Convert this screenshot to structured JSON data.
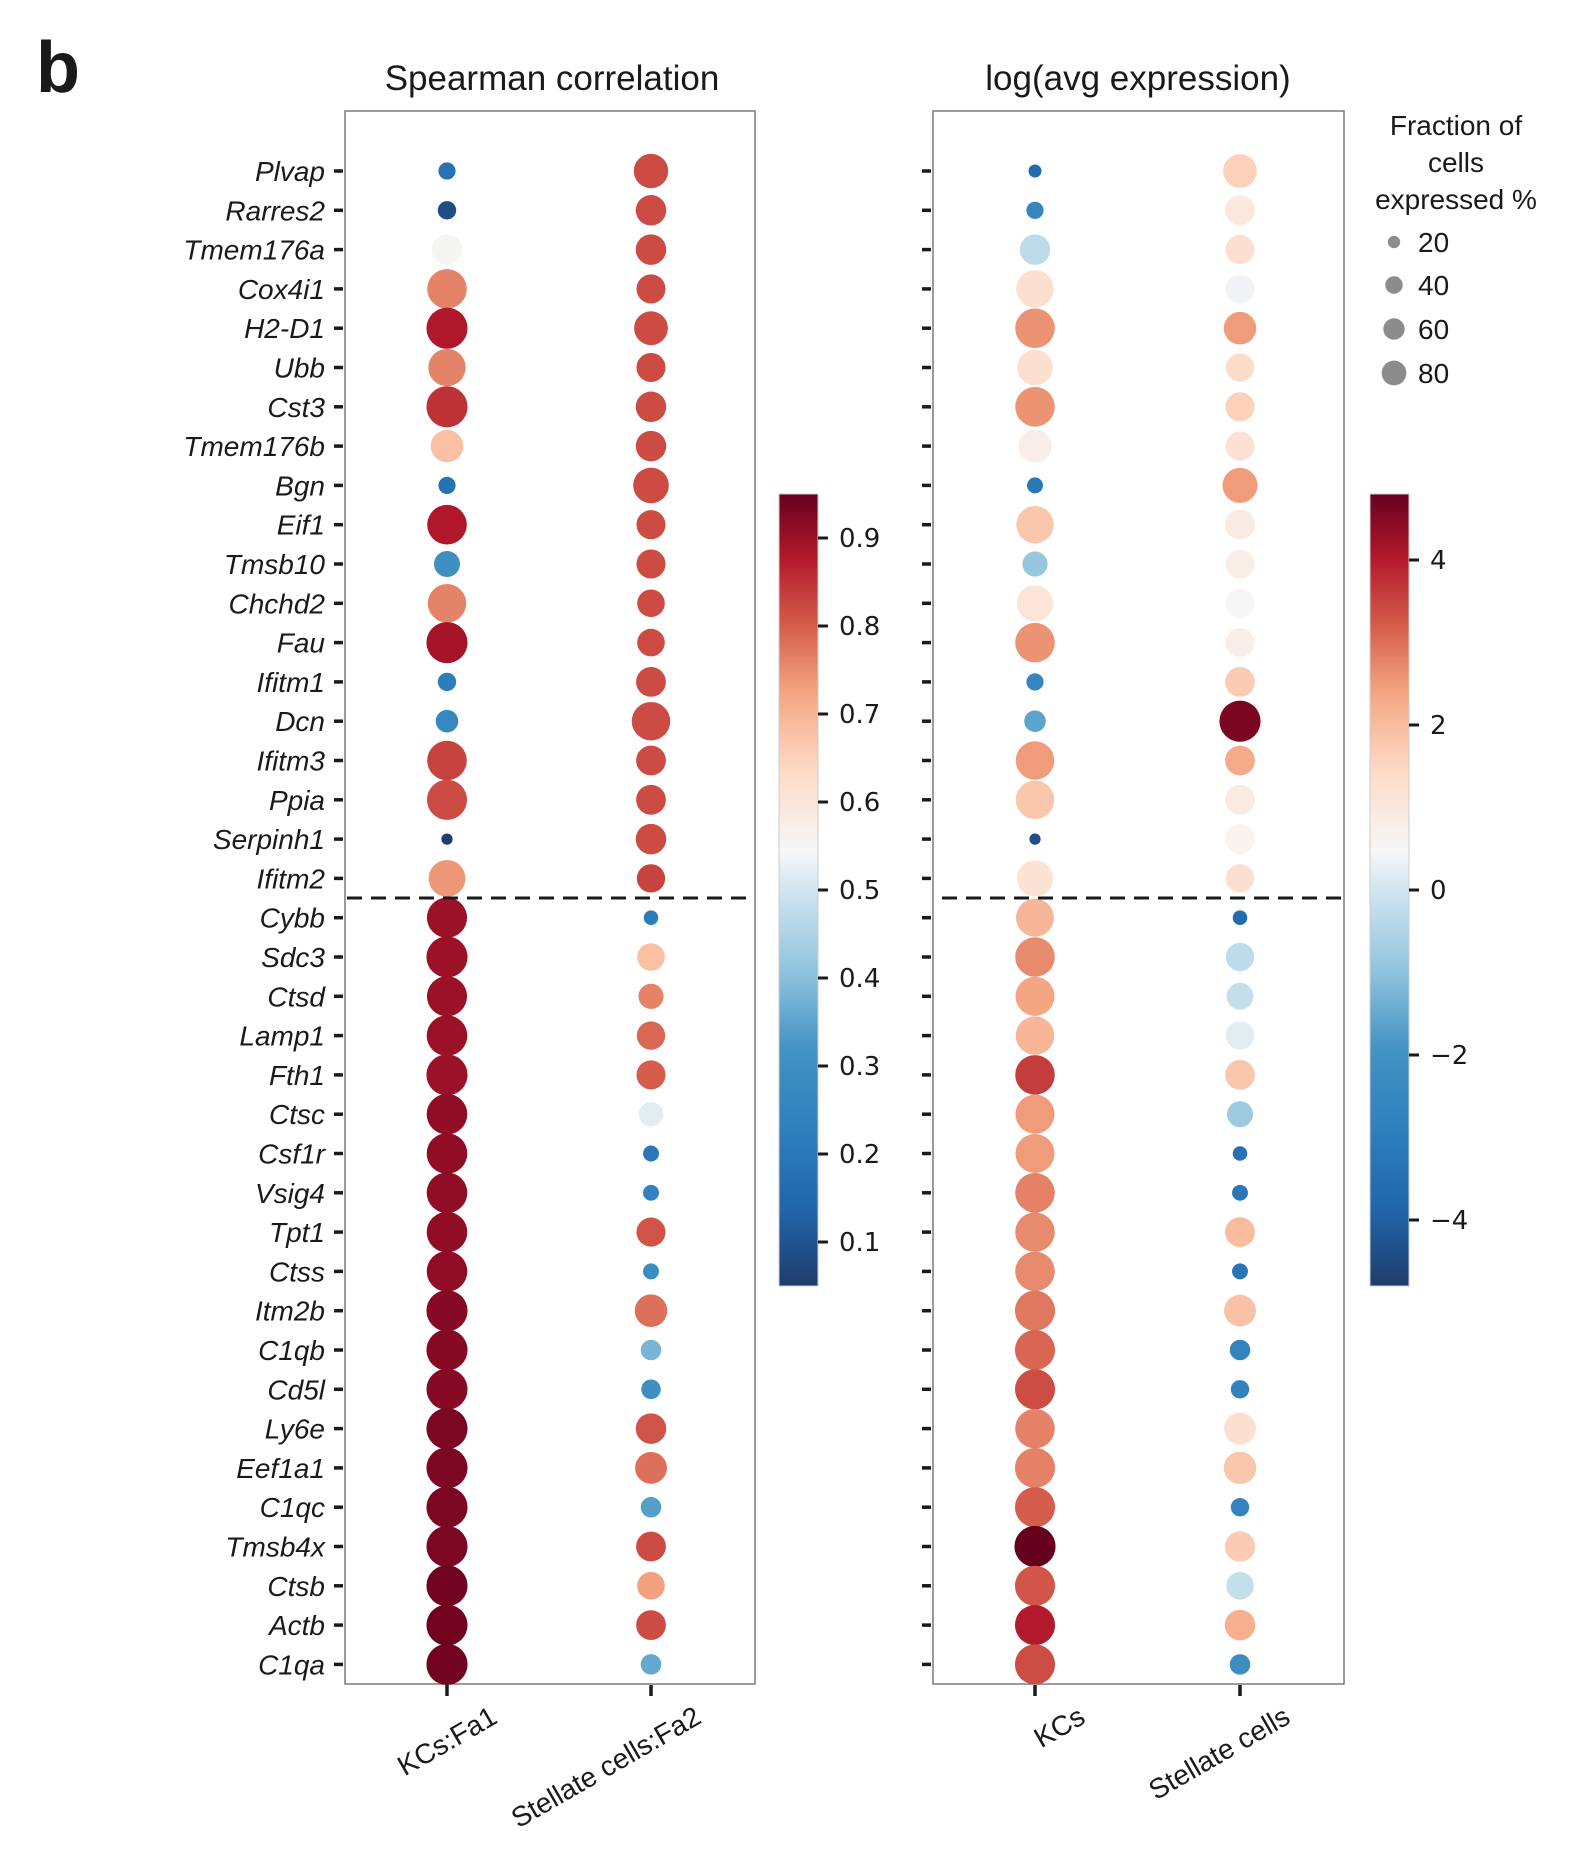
{
  "figure": {
    "panel_letter": "b",
    "legend": {
      "title_lines": [
        "Fraction of",
        "cells",
        "expressed %"
      ],
      "sizes": [
        20,
        40,
        60,
        80
      ],
      "labels": [
        "20",
        "40",
        "60",
        "80"
      ],
      "color": "#8c8c8c"
    }
  },
  "chart_data": [
    {
      "type": "scatter",
      "subtype": "dot-plot",
      "title": "Spearman correlation",
      "xlabel": "",
      "ylabel": "",
      "categories_x": [
        "KCs:Fa1",
        "Stellate cells:Fa2"
      ],
      "categories_y": [
        "Plvap",
        "Rarres2",
        "Tmem176a",
        "Cox4i1",
        "H2-D1",
        "Ubb",
        "Cst3",
        "Tmem176b",
        "Bgn",
        "Eif1",
        "Tmsb10",
        "Chchd2",
        "Fau",
        "Ifitm1",
        "Dcn",
        "Ifitm3",
        "Ppia",
        "Serpinh1",
        "Ifitm2",
        "Cybb",
        "Sdc3",
        "Ctsd",
        "Lamp1",
        "Fth1",
        "Ctsc",
        "Csf1r",
        "Vsig4",
        "Tpt1",
        "Ctss",
        "Itm2b",
        "C1qb",
        "Cd5l",
        "Ly6e",
        "Eef1a1",
        "C1qc",
        "Tmsb4x",
        "Ctsb",
        "Actb",
        "C1qa"
      ],
      "divider_after": "Ifitm2",
      "color_scale": {
        "name": "RdBu_r",
        "range": [
          0.05,
          0.95
        ],
        "ticks": [
          0.1,
          0.2,
          0.3,
          0.4,
          0.5,
          0.6,
          0.7,
          0.8,
          0.9
        ],
        "tick_labels": [
          "0.1",
          "0.2",
          "0.3",
          "0.4",
          "0.5",
          "0.6",
          "0.7",
          "0.8",
          "0.9"
        ]
      },
      "series": [
        {
          "name": "KCs:Fa1",
          "color_values": [
            0.18,
            0.08,
            0.55,
            0.76,
            0.88,
            0.76,
            0.85,
            0.68,
            0.18,
            0.88,
            0.3,
            0.76,
            0.89,
            0.22,
            0.27,
            0.83,
            0.82,
            0.05,
            0.74,
            0.9,
            0.9,
            0.9,
            0.9,
            0.9,
            0.91,
            0.91,
            0.91,
            0.91,
            0.91,
            0.92,
            0.92,
            0.92,
            0.93,
            0.93,
            0.93,
            0.93,
            0.94,
            0.94,
            0.94
          ],
          "size_values": [
            14,
            16,
            44,
            74,
            80,
            66,
            80,
            50,
            14,
            74,
            32,
            70,
            80,
            16,
            24,
            74,
            76,
            6,
            64,
            76,
            80,
            76,
            78,
            80,
            78,
            78,
            78,
            78,
            78,
            80,
            80,
            80,
            80,
            80,
            80,
            80,
            80,
            80,
            80
          ]
        },
        {
          "name": "Stellate cells:Fa2",
          "color_values": [
            0.82,
            0.82,
            0.82,
            0.82,
            0.82,
            0.82,
            0.82,
            0.82,
            0.82,
            0.82,
            0.82,
            0.82,
            0.82,
            0.82,
            0.82,
            0.82,
            0.82,
            0.82,
            0.83,
            0.22,
            0.68,
            0.76,
            0.79,
            0.8,
            0.52,
            0.2,
            0.24,
            0.81,
            0.28,
            0.78,
            0.38,
            0.3,
            0.81,
            0.78,
            0.34,
            0.82,
            0.73,
            0.82,
            0.36
          ],
          "size_values": [
            56,
            44,
            44,
            40,
            54,
            40,
            44,
            44,
            60,
            40,
            40,
            36,
            36,
            42,
            70,
            42,
            42,
            44,
            38,
            10,
            36,
            30,
            38,
            40,
            28,
            12,
            12,
            40,
            12,
            50,
            20,
            18,
            44,
            48,
            20,
            42,
            36,
            42,
            20
          ]
        }
      ]
    },
    {
      "type": "scatter",
      "subtype": "dot-plot",
      "title": "log(avg expression)",
      "xlabel": "",
      "ylabel": "",
      "categories_x": [
        "KCs",
        "Stellate cells"
      ],
      "categories_y": [
        "Plvap",
        "Rarres2",
        "Tmem176a",
        "Cox4i1",
        "H2-D1",
        "Ubb",
        "Cst3",
        "Tmem176b",
        "Bgn",
        "Eif1",
        "Tmsb10",
        "Chchd2",
        "Fau",
        "Ifitm1",
        "Dcn",
        "Ifitm3",
        "Ppia",
        "Serpinh1",
        "Ifitm2",
        "Cybb",
        "Sdc3",
        "Ctsd",
        "Lamp1",
        "Fth1",
        "Ctsc",
        "Csf1r",
        "Vsig4",
        "Tpt1",
        "Ctss",
        "Itm2b",
        "C1qb",
        "Cd5l",
        "Ly6e",
        "Eef1a1",
        "C1qc",
        "Tmsb4x",
        "Ctsb",
        "Actb",
        "C1qa"
      ],
      "divider_after": "Ifitm2",
      "color_scale": {
        "name": "RdBu_r",
        "range": [
          -4.8,
          4.8
        ],
        "ticks": [
          -4,
          -2,
          0,
          2,
          4
        ],
        "tick_labels": [
          "−4",
          "−2",
          "0",
          "2",
          "4"
        ]
      },
      "series": [
        {
          "name": "KCs",
          "color_values": [
            -3.6,
            -2.6,
            -0.3,
            1.3,
            2.6,
            1.3,
            2.6,
            0.8,
            -3.2,
            1.8,
            -0.9,
            1.1,
            2.6,
            -2.6,
            -1.6,
            2.5,
            1.8,
            -4.4,
            1.2,
            2.1,
            2.7,
            2.4,
            2.1,
            3.6,
            2.5,
            2.5,
            2.8,
            2.7,
            2.7,
            2.9,
            3.1,
            3.4,
            2.8,
            2.8,
            3.2,
            4.8,
            3.3,
            4.0,
            3.4
          ],
          "size_values": [
            8,
            14,
            44,
            66,
            74,
            60,
            74,
            52,
            12,
            66,
            30,
            62,
            74,
            14,
            22,
            70,
            70,
            6,
            62,
            68,
            74,
            72,
            70,
            74,
            72,
            72,
            74,
            74,
            74,
            76,
            76,
            76,
            74,
            76,
            76,
            80,
            76,
            76,
            76
          ],
          "color_hint": "KCs"
        },
        {
          "name": "Stellate cells",
          "color_values": [
            1.6,
            1.0,
            1.3,
            0.4,
            2.5,
            1.4,
            1.6,
            1.2,
            2.5,
            0.9,
            0.8,
            0.5,
            0.8,
            1.7,
            4.6,
            2.3,
            0.9,
            0.6,
            1.3,
            -3.6,
            -0.3,
            -0.2,
            0.2,
            1.8,
            -0.8,
            -3.4,
            -3.2,
            2.0,
            -3.3,
            1.9,
            -2.7,
            -2.8,
            1.3,
            1.8,
            -2.7,
            1.7,
            -0.2,
            2.2,
            -2.2
          ],
          "size_values": [
            54,
            42,
            40,
            40,
            50,
            38,
            40,
            40,
            58,
            42,
            40,
            40,
            40,
            42,
            80,
            42,
            42,
            42,
            38,
            10,
            38,
            34,
            38,
            42,
            32,
            10,
            12,
            42,
            12,
            48,
            20,
            16,
            48,
            50,
            16,
            44,
            36,
            44,
            20
          ]
        }
      ]
    }
  ]
}
